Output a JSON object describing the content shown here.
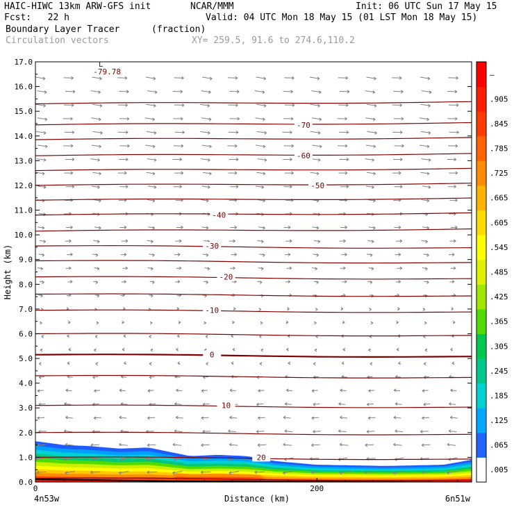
{
  "header": {
    "line1_left": "HAIC-HIWC 13km ARW-GFS init",
    "line1_center": "NCAR/MMM",
    "line1_right": "Init: 06 UTC Sun 17 May 15",
    "line2_left": "Fcst:   22 h",
    "line2_right": "Valid: 04 UTC Mon 18 May 15 (01 LST Mon 18 May 15)",
    "line3_field": "Boundary Layer Tracer",
    "line3_units": "(fraction)",
    "line4_field": "Circulation vectors",
    "line4_xy": "XY= 259.5, 91.6 to 274.6,110.2"
  },
  "chart_data": {
    "type": "heatmap",
    "title": "Boundary Layer Tracer",
    "xlabel": "Distance (km)",
    "ylabel": "Height (km)",
    "xlim": [
      0,
      310
    ],
    "ylim": [
      0,
      17
    ],
    "x_ticks": [
      {
        "value": 0,
        "label": "0"
      },
      {
        "value": 200,
        "label": "200"
      }
    ],
    "x_end_labels": {
      "left": "4n53w",
      "right": "6n51w"
    },
    "y_ticks": [
      "0.0",
      "1.0",
      "2.0",
      "3.0",
      "4.0",
      "5.0",
      "6.0",
      "7.0",
      "8.0",
      "9.0",
      "10.0",
      "11.0",
      "12.0",
      "13.0",
      "14.0",
      "15.0",
      "16.0",
      "17.0"
    ],
    "colorbar": {
      "labels": [
        ".005",
        ".065",
        ".125",
        ".185",
        ".245",
        ".305",
        ".365",
        ".425",
        ".485",
        ".545",
        ".605",
        ".665",
        ".725",
        ".785",
        ".845",
        ".905",
        "–"
      ],
      "colors": [
        "#ffffff",
        "#2266ff",
        "#00a8ff",
        "#00d2d2",
        "#00c88c",
        "#00c850",
        "#50dc00",
        "#a0e600",
        "#dcf000",
        "#ffff00",
        "#ffdc00",
        "#ffb400",
        "#ff8c00",
        "#ff6400",
        "#ff3c00",
        "#ff1e00",
        "#ff0000"
      ]
    },
    "temperature_contours": [
      {
        "value": -70,
        "label": "-70",
        "height_km": 14.45
      },
      {
        "value": -60,
        "label": "-60",
        "height_km": 13.2
      },
      {
        "value": -50,
        "label": "-50",
        "height_km": 12.0
      },
      {
        "value": -40,
        "label": "-40",
        "height_km": 10.8
      },
      {
        "value": -30,
        "label": "-30",
        "height_km": 9.55
      },
      {
        "value": -20,
        "label": "-20",
        "height_km": 8.3
      },
      {
        "value": -10,
        "label": "-10",
        "height_km": 6.95
      },
      {
        "value": 0,
        "label": "0",
        "height_km": 5.15
      },
      {
        "value": 10,
        "label": "10",
        "height_km": 3.1
      },
      {
        "value": 20,
        "label": "20",
        "height_km": 1.0
      }
    ],
    "intermediate_contour_heights_km": [
      15.3,
      13.85,
      12.6,
      11.4,
      10.15,
      8.95,
      7.6,
      6.0,
      4.3,
      2.0,
      0.15
    ],
    "min_annotation": {
      "marker": "L",
      "value": "-79.78",
      "x_km": 45,
      "height_km": 16.95
    },
    "tracer_layer_top_km": [
      [
        0,
        1.65
      ],
      [
        20,
        1.5
      ],
      [
        40,
        1.45
      ],
      [
        60,
        1.35
      ],
      [
        80,
        1.4
      ],
      [
        110,
        1.05
      ],
      [
        130,
        1.1
      ],
      [
        150,
        1.05
      ],
      [
        170,
        0.85
      ],
      [
        200,
        0.7
      ],
      [
        250,
        0.65
      ],
      [
        290,
        0.7
      ],
      [
        310,
        0.9
      ]
    ],
    "wind_vectors": {
      "description_direction_upper": "eastward",
      "description_direction_lower": "westward",
      "reversal_height_km": 6.0
    }
  }
}
